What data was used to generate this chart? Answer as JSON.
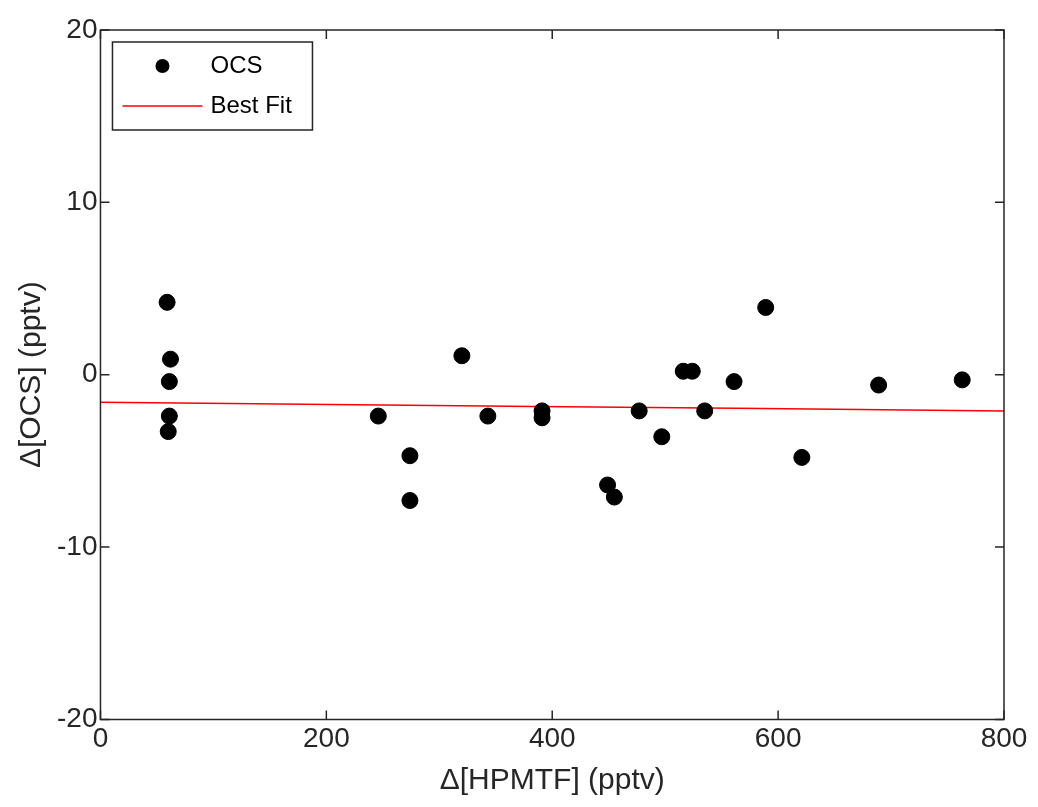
{
  "chart_data": {
    "type": "scatter",
    "xlabel": "Δ[HPMTF] (pptv)",
    "ylabel": "Δ[OCS] (pptv)",
    "xlim": [
      0,
      800
    ],
    "xticks": [
      0,
      200,
      400,
      600,
      800
    ],
    "ylim": [
      -20,
      20
    ],
    "yticks": [
      -20,
      -10,
      0,
      10,
      20
    ],
    "grid": false,
    "legend": "top left",
    "series": [
      {
        "name": "OCS",
        "type": "scatter",
        "color": "#000000",
        "marker": "circle",
        "x": [
          59,
          62,
          61,
          61,
          60,
          246,
          274,
          274,
          320,
          343,
          391,
          391,
          449,
          455,
          477,
          497,
          516,
          524,
          535,
          561,
          589,
          621,
          689,
          763
        ],
        "values": [
          4.2,
          0.9,
          -0.4,
          -2.4,
          -3.3,
          -2.4,
          -4.7,
          -7.3,
          1.1,
          -2.4,
          -2.1,
          -2.5,
          -6.4,
          -7.1,
          -2.1,
          -3.6,
          0.2,
          0.2,
          -2.1,
          -0.4,
          3.9,
          -4.8,
          -0.6,
          -0.3
        ]
      },
      {
        "name": "Best Fit",
        "type": "line",
        "color": "#ff0000",
        "marker": "none",
        "line_style": "solid",
        "x": [
          0,
          800
        ],
        "values": [
          -1.6,
          -2.1
        ]
      }
    ]
  }
}
